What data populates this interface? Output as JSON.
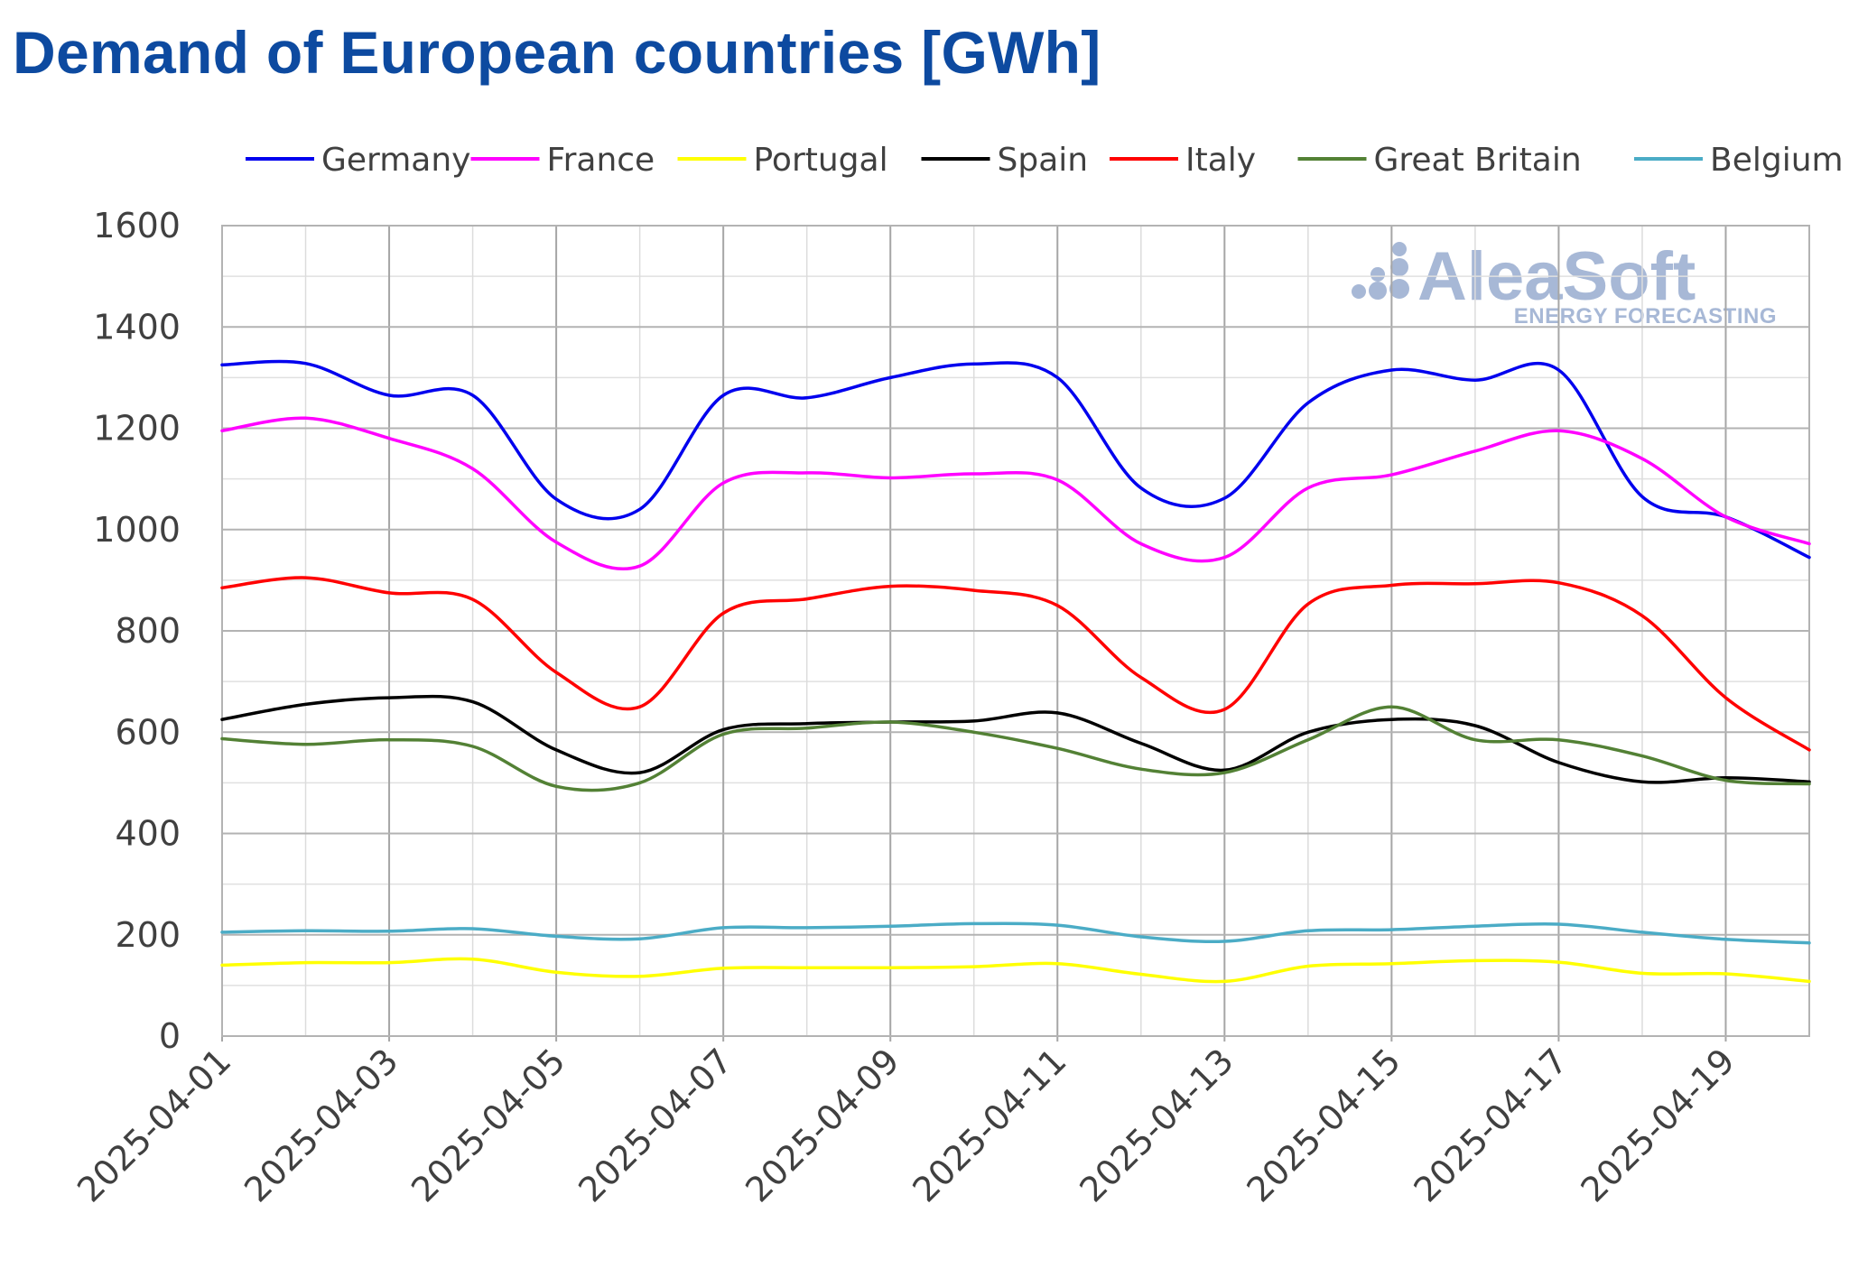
{
  "page": {
    "title": "Demand of European countries [GWh]"
  },
  "logo": {
    "name": "AleaSoft",
    "tagline": "ENERGY FORECASTING",
    "color": "#a7b8d6"
  },
  "chart_data": {
    "type": "line",
    "title": "Demand of European countries [GWh]",
    "xlabel": "",
    "ylabel": "",
    "ylim": [
      0,
      1600
    ],
    "yticks": [
      0,
      200,
      400,
      600,
      800,
      1000,
      1200,
      1400,
      1600
    ],
    "grid": true,
    "legend_position": "top",
    "x": [
      "2025-04-01",
      "2025-04-02",
      "2025-04-03",
      "2025-04-04",
      "2025-04-05",
      "2025-04-06",
      "2025-04-07",
      "2025-04-08",
      "2025-04-09",
      "2025-04-10",
      "2025-04-11",
      "2025-04-12",
      "2025-04-13",
      "2025-04-14",
      "2025-04-15",
      "2025-04-16",
      "2025-04-17",
      "2025-04-18",
      "2025-04-19",
      "2025-04-20"
    ],
    "xtick_labels": [
      "2025-04-01",
      "2025-04-03",
      "2025-04-05",
      "2025-04-07",
      "2025-04-09",
      "2025-04-11",
      "2025-04-13",
      "2025-04-15",
      "2025-04-17",
      "2025-04-19"
    ],
    "series": [
      {
        "name": "Germany",
        "color": "#0000ee",
        "values": [
          1325,
          1328,
          1265,
          1265,
          1060,
          1040,
          1265,
          1260,
          1300,
          1327,
          1300,
          1082,
          1062,
          1250,
          1315,
          1295,
          1315,
          1065,
          1025,
          945
        ]
      },
      {
        "name": "France",
        "color": "#ff00ff",
        "values": [
          1195,
          1220,
          1180,
          1120,
          975,
          928,
          1092,
          1112,
          1102,
          1110,
          1098,
          972,
          945,
          1082,
          1108,
          1155,
          1195,
          1140,
          1025,
          972
        ]
      },
      {
        "name": "Portugal",
        "color": "#ffff00",
        "values": [
          140,
          145,
          145,
          152,
          126,
          118,
          134,
          135,
          135,
          137,
          143,
          122,
          108,
          138,
          143,
          149,
          146,
          124,
          123,
          108
        ]
      },
      {
        "name": "Spain",
        "color": "#000000",
        "values": [
          625,
          655,
          668,
          660,
          565,
          520,
          605,
          617,
          620,
          622,
          638,
          578,
          525,
          600,
          625,
          613,
          540,
          502,
          510,
          502
        ]
      },
      {
        "name": "Italy",
        "color": "#ff0000",
        "values": [
          885,
          905,
          875,
          862,
          718,
          650,
          835,
          863,
          888,
          880,
          850,
          708,
          645,
          853,
          890,
          893,
          895,
          830,
          668,
          565
        ]
      },
      {
        "name": "Great Britain",
        "color": "#538135",
        "values": [
          587,
          576,
          585,
          572,
          493,
          500,
          596,
          608,
          620,
          600,
          568,
          527,
          520,
          585,
          650,
          585,
          585,
          553,
          505,
          498
        ]
      },
      {
        "name": "Belgium",
        "color": "#4bacc6",
        "values": [
          205,
          208,
          207,
          212,
          197,
          192,
          214,
          214,
          217,
          222,
          219,
          196,
          187,
          208,
          210,
          217,
          221,
          205,
          191,
          184
        ]
      }
    ]
  }
}
